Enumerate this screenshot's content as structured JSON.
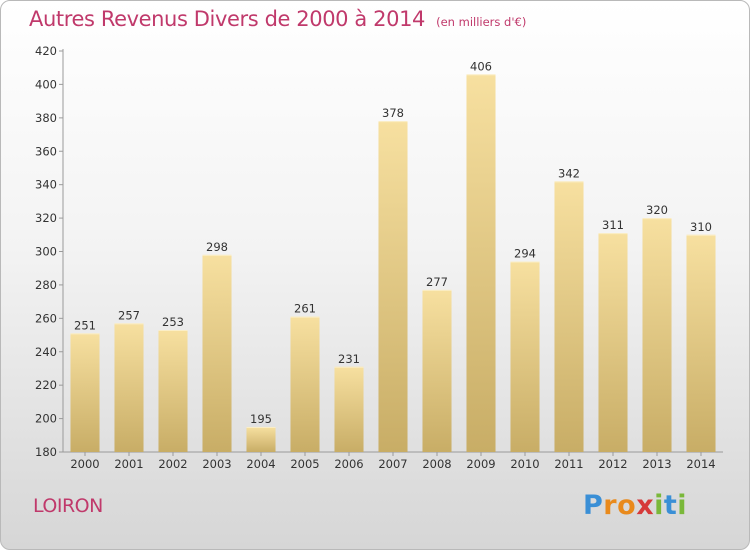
{
  "title": "Autres Revenus Divers de 2000 à 2014",
  "unit": "(en milliers d'€)",
  "place": "LOIRON",
  "logo": {
    "letters": [
      {
        "ch": "P",
        "color": "#3a8fd6"
      },
      {
        "ch": "r",
        "color": "#e98a1c"
      },
      {
        "ch": "o",
        "color": "#e98a1c"
      },
      {
        "ch": "x",
        "color": "#d63a3a"
      },
      {
        "ch": "i",
        "color": "#7ab83a"
      },
      {
        "ch": "t",
        "color": "#3a8fd6"
      },
      {
        "ch": "i",
        "color": "#7ab83a"
      }
    ]
  },
  "colors": {
    "bar_top": "#f7e0a0",
    "bar_bottom": "#c8ad66",
    "accent": "#c0396b"
  },
  "chart_data": {
    "type": "bar",
    "title": "Autres Revenus Divers de 2000 à 2014",
    "categories": [
      "2000",
      "2001",
      "2002",
      "2003",
      "2004",
      "2005",
      "2006",
      "2007",
      "2008",
      "2009",
      "2010",
      "2011",
      "2012",
      "2013",
      "2014"
    ],
    "values": [
      251,
      257,
      253,
      298,
      195,
      261,
      231,
      378,
      277,
      406,
      294,
      342,
      311,
      320,
      310
    ],
    "ylim": [
      180,
      420
    ],
    "yticks": [
      180,
      200,
      220,
      240,
      260,
      280,
      300,
      320,
      340,
      360,
      380,
      400,
      420
    ],
    "grid": false,
    "data_labels": true
  }
}
